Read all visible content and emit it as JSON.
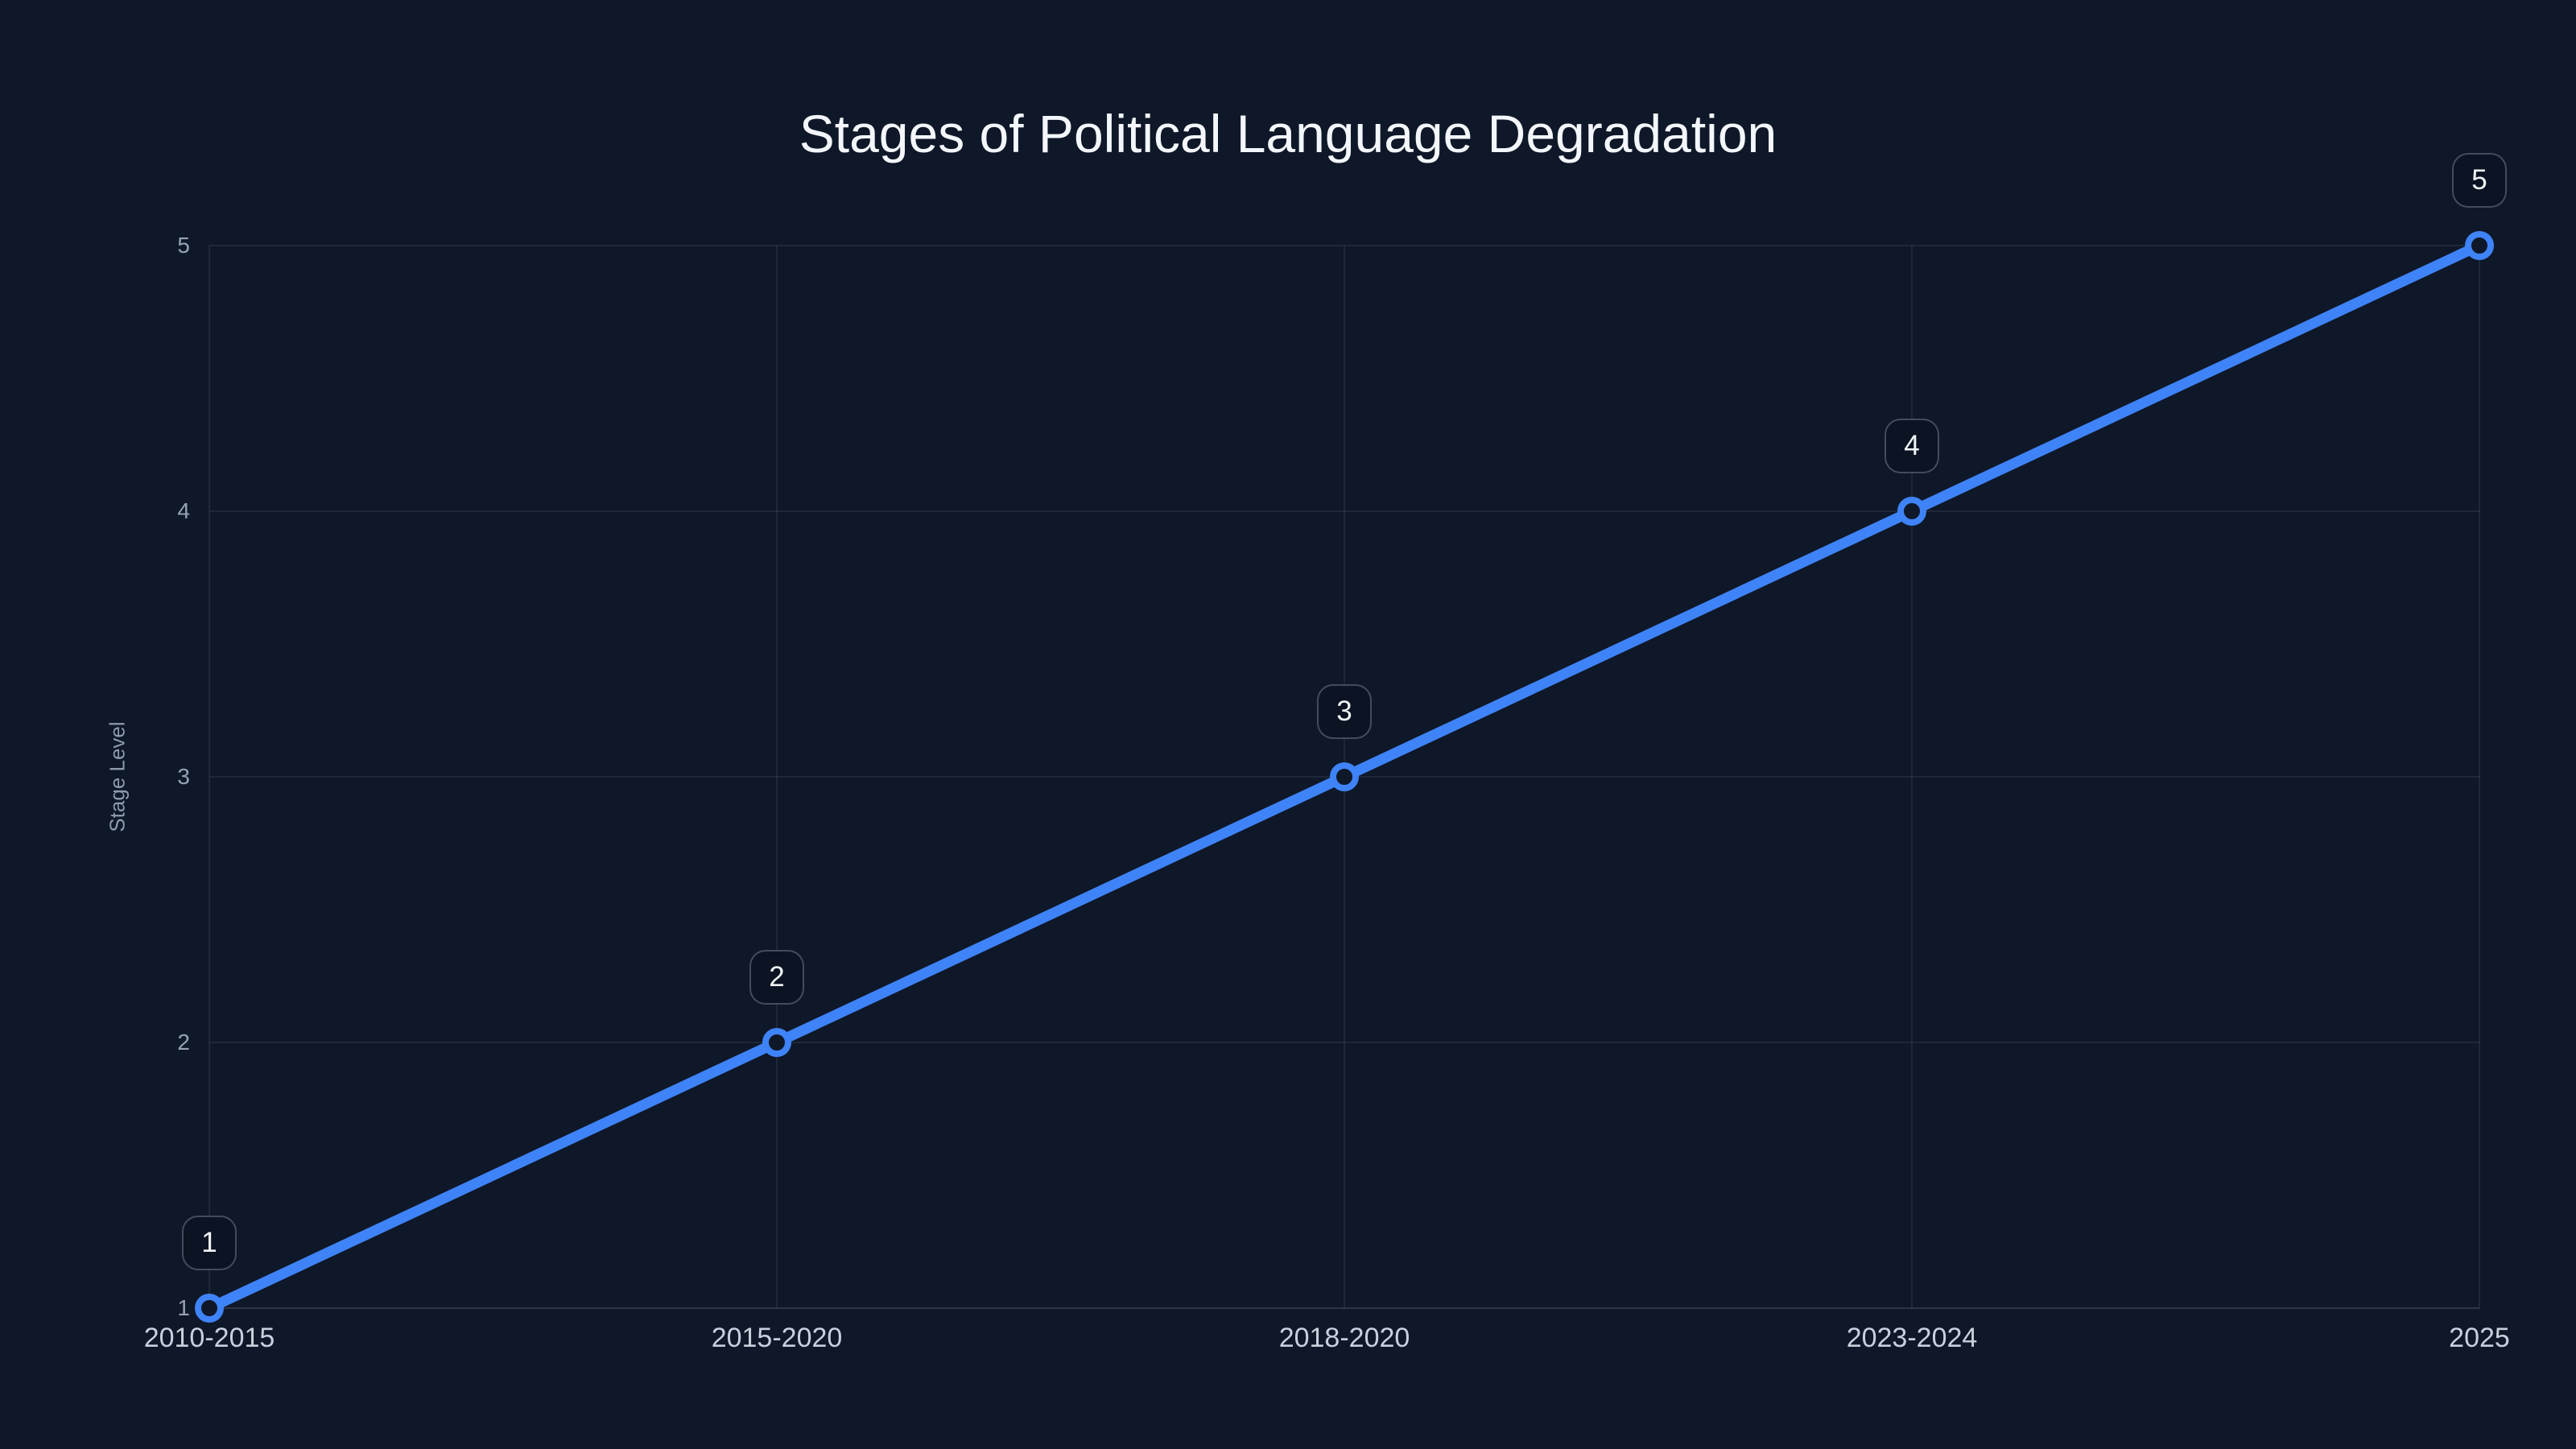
{
  "chart_data": {
    "type": "line",
    "title": "Stages of Political Language Degradation",
    "categories": [
      "2010-2015",
      "2015-2020",
      "2018-2020",
      "2023-2024",
      "2025"
    ],
    "values": [
      1,
      2,
      3,
      4,
      5
    ],
    "point_labels": [
      "1",
      "2",
      "3",
      "4",
      "5"
    ],
    "xlabel": "",
    "ylabel": "Stage Level",
    "ylim": [
      1,
      5
    ],
    "yticks": [
      1,
      2,
      3,
      4,
      5
    ],
    "grid": true,
    "legend": false
  },
  "colors": {
    "background": "#0f1828",
    "line": "#3f83f8",
    "marker_fill": "#0f1828",
    "grid": "rgba(148,163,184,0.16)",
    "axis_line": "rgba(148,163,184,0.30)",
    "title_text": "#f3f6fb",
    "x_tick_text": "#c7d0dc",
    "y_tick_text": "#96a2b5",
    "axis_title_text": "#8e9aae",
    "badge_fill": "#0c1322",
    "badge_border": "rgba(148,163,184,0.40)",
    "badge_text": "#f1f5f9"
  }
}
